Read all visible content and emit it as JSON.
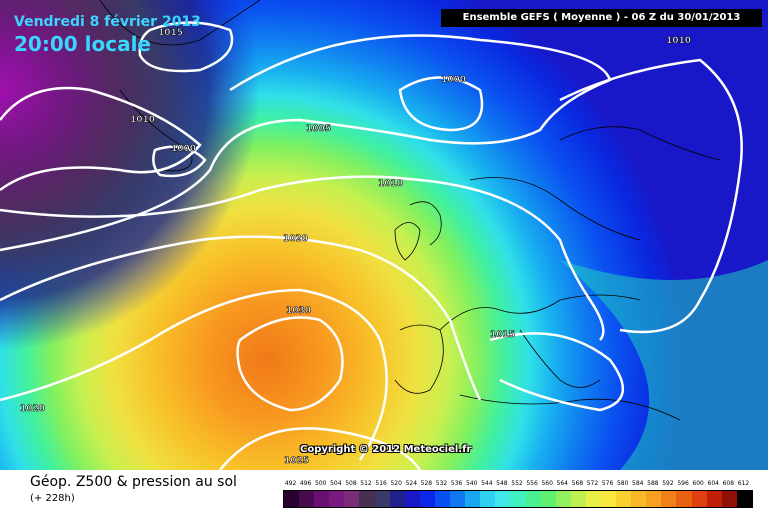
{
  "header": {
    "date": "Vendredi 8 février 2013",
    "time": "20:00 locale",
    "run_info": "Ensemble GEFS ( Moyenne )  -  06 Z du 30/01/2013"
  },
  "isobar_labels": [
    "1015",
    "1010",
    "1000",
    "1010",
    "1000",
    "1005",
    "1010",
    "1020",
    "1030",
    "1015",
    "1020",
    "1025"
  ],
  "copyright": "Copyright © 2012 Meteociel.fr",
  "footer": {
    "title": "Géop. Z500 & pression au sol",
    "subtitle": "(+ 228h)"
  },
  "legend": {
    "values": [
      "492",
      "496",
      "500",
      "504",
      "508",
      "512",
      "516",
      "520",
      "524",
      "528",
      "532",
      "536",
      "540",
      "544",
      "548",
      "552",
      "556",
      "560",
      "564",
      "568",
      "572",
      "576",
      "580",
      "584",
      "588",
      "592",
      "596",
      "600",
      "604",
      "608",
      "612"
    ],
    "colors": [
      "#2a0030",
      "#4a0a50",
      "#6a1070",
      "#7a1a80",
      "#7a2c78",
      "#4a3050",
      "#3a3a68",
      "#20208a",
      "#1818c8",
      "#0a28e8",
      "#0a50f0",
      "#1078f0",
      "#18a8f0",
      "#30d0f0",
      "#40e8e8",
      "#40f0c0",
      "#48f090",
      "#60f070",
      "#90f060",
      "#c0f050",
      "#e8f048",
      "#f8e840",
      "#f8d030",
      "#f8b828",
      "#f8a020",
      "#f08018",
      "#e86010",
      "#e04010",
      "#c02008",
      "#901008",
      "#000000"
    ]
  }
}
